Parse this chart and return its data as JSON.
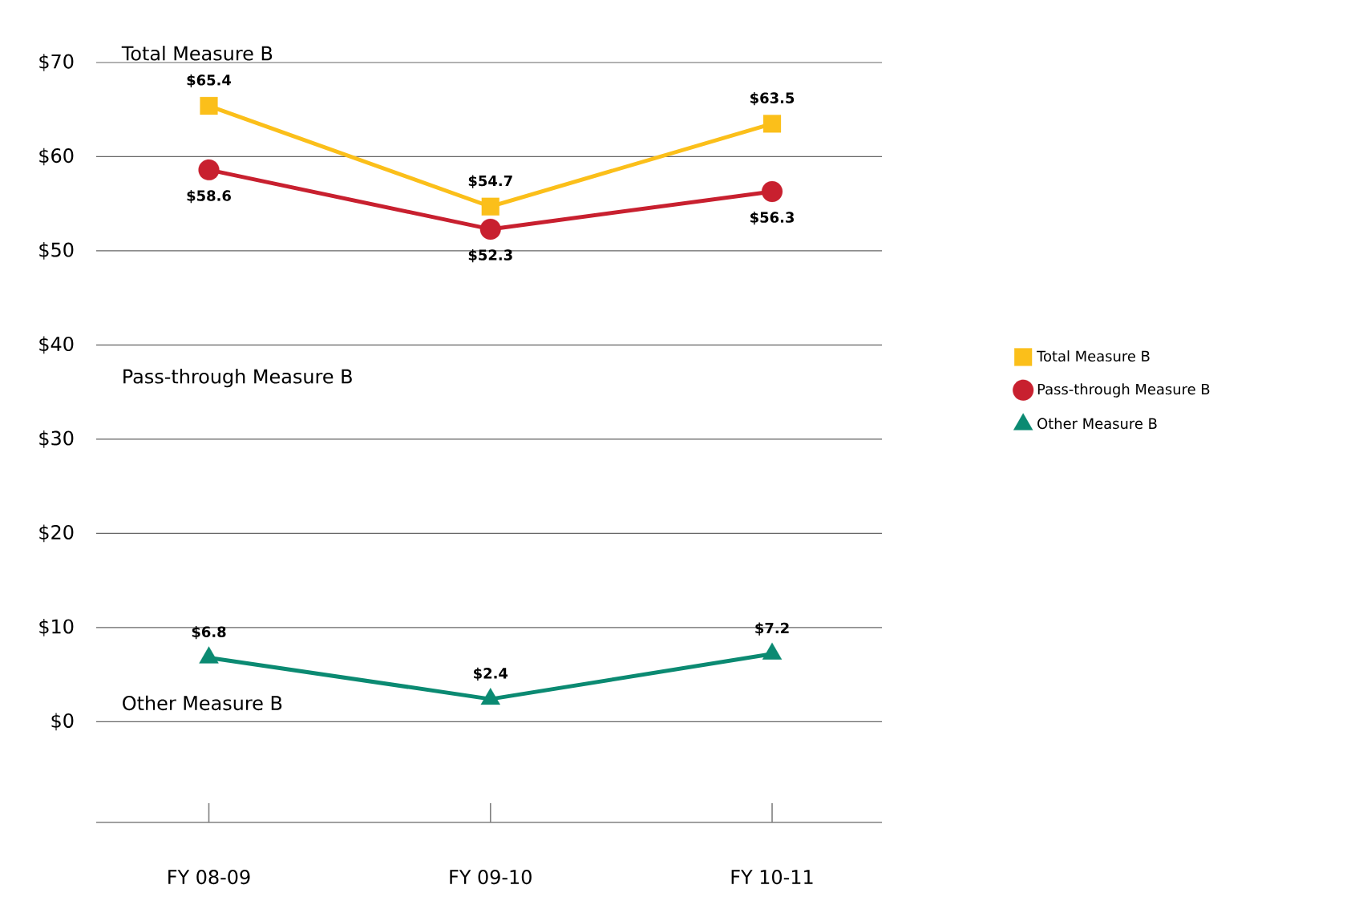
{
  "chart_data": {
    "type": "line",
    "categories": [
      "FY 08-09",
      "FY 09-10",
      "FY 10-11"
    ],
    "series": [
      {
        "name": "Total Measure B",
        "color": "#fbbf1a",
        "marker": "square",
        "values": [
          65.4,
          54.7,
          63.5
        ],
        "value_labels": [
          "$65.4",
          "$54.7",
          "$63.5"
        ]
      },
      {
        "name": "Pass-through Measure B",
        "color": "#c8202f",
        "marker": "circle",
        "values": [
          58.6,
          52.3,
          56.3
        ],
        "value_labels": [
          "$58.6",
          "$52.3",
          "$56.3"
        ]
      },
      {
        "name": "Other Measure B",
        "color": "#0b8a72",
        "marker": "triangle",
        "values": [
          6.8,
          2.4,
          7.2
        ],
        "value_labels": [
          "$6.8",
          "$2.4",
          "$7.2"
        ]
      }
    ],
    "annotations": [
      "Total Measure B",
      "Pass-through Measure B",
      "Other Measure B"
    ],
    "ylim": [
      -10.7,
      70
    ],
    "yticks": [
      {
        "value": 0,
        "label": "$0"
      },
      {
        "value": 10,
        "label": "$10"
      },
      {
        "value": 20,
        "label": "$20"
      },
      {
        "value": 30,
        "label": "$30"
      },
      {
        "value": 40,
        "label": "$40"
      },
      {
        "value": 50,
        "label": "$50"
      },
      {
        "value": 60,
        "label": "$60"
      },
      {
        "value": 70,
        "label": "$70"
      }
    ],
    "grid": "y",
    "legend": "right"
  }
}
